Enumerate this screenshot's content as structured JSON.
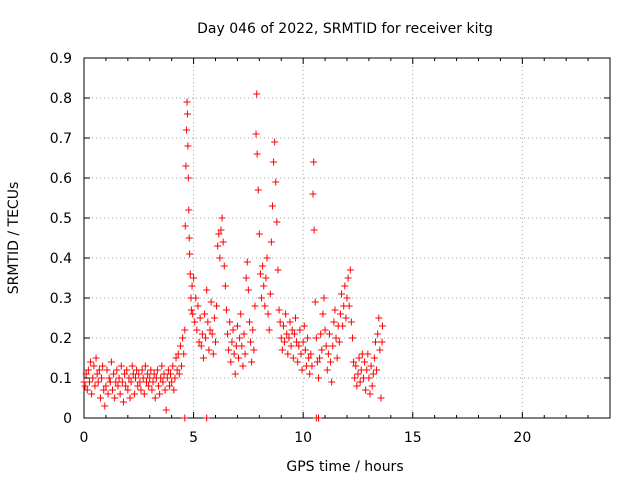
{
  "chart_data": {
    "type": "scatter",
    "title": "Day 046 of 2022, SRMTID for receiver kitg",
    "xlabel": "GPS time / hours",
    "ylabel": "SRMTID / TECUs",
    "xlim": [
      0,
      24
    ],
    "ylim": [
      0,
      0.9
    ],
    "xticks": [
      "0",
      "5",
      "10",
      "15",
      "20"
    ],
    "yticks": [
      "0",
      "0.1",
      "0.2",
      "0.3",
      "0.4",
      "0.5",
      "0.6",
      "0.7",
      "0.8",
      "0.9"
    ],
    "grid": true,
    "marker": "+",
    "color": "#ff0000",
    "series": [
      {
        "name": "SRMTID",
        "points": [
          [
            0.0,
            0.09
          ],
          [
            0.05,
            0.08
          ],
          [
            0.1,
            0.11
          ],
          [
            0.15,
            0.07
          ],
          [
            0.2,
            0.12
          ],
          [
            0.25,
            0.09
          ],
          [
            0.3,
            0.14
          ],
          [
            0.35,
            0.06
          ],
          [
            0.4,
            0.1
          ],
          [
            0.45,
            0.13
          ],
          [
            0.5,
            0.08
          ],
          [
            0.55,
            0.15
          ],
          [
            0.6,
            0.11
          ],
          [
            0.65,
            0.09
          ],
          [
            0.7,
            0.12
          ],
          [
            0.75,
            0.05
          ],
          [
            0.8,
            0.1
          ],
          [
            0.85,
            0.13
          ],
          [
            0.9,
            0.07
          ],
          [
            0.95,
            0.03
          ],
          [
            1.0,
            0.08
          ],
          [
            1.05,
            0.12
          ],
          [
            1.1,
            0.06
          ],
          [
            1.15,
            0.1
          ],
          [
            1.2,
            0.09
          ],
          [
            1.25,
            0.14
          ],
          [
            1.3,
            0.07
          ],
          [
            1.35,
            0.11
          ],
          [
            1.4,
            0.05
          ],
          [
            1.45,
            0.09
          ],
          [
            1.5,
            0.12
          ],
          [
            1.55,
            0.08
          ],
          [
            1.6,
            0.1
          ],
          [
            1.65,
            0.06
          ],
          [
            1.7,
            0.13
          ],
          [
            1.75,
            0.09
          ],
          [
            1.8,
            0.04
          ],
          [
            1.85,
            0.11
          ],
          [
            1.9,
            0.08
          ],
          [
            1.95,
            0.12
          ],
          [
            2.0,
            0.07
          ],
          [
            2.05,
            0.1
          ],
          [
            2.1,
            0.05
          ],
          [
            2.15,
            0.09
          ],
          [
            2.2,
            0.13
          ],
          [
            2.25,
            0.11
          ],
          [
            2.3,
            0.06
          ],
          [
            2.35,
            0.1
          ],
          [
            2.4,
            0.12
          ],
          [
            2.45,
            0.08
          ],
          [
            2.5,
            0.11
          ],
          [
            2.55,
            0.09
          ],
          [
            2.6,
            0.07
          ],
          [
            2.65,
            0.12
          ],
          [
            2.7,
            0.1
          ],
          [
            2.75,
            0.06
          ],
          [
            2.8,
            0.13
          ],
          [
            2.85,
            0.09
          ],
          [
            2.9,
            0.11
          ],
          [
            2.95,
            0.08
          ],
          [
            3.0,
            0.1
          ],
          [
            3.05,
            0.12
          ],
          [
            3.1,
            0.07
          ],
          [
            3.15,
            0.09
          ],
          [
            3.2,
            0.11
          ],
          [
            3.25,
            0.05
          ],
          [
            3.3,
            0.1
          ],
          [
            3.35,
            0.12
          ],
          [
            3.4,
            0.08
          ],
          [
            3.45,
            0.06
          ],
          [
            3.5,
            0.1
          ],
          [
            3.55,
            0.13
          ],
          [
            3.6,
            0.09
          ],
          [
            3.65,
            0.11
          ],
          [
            3.7,
            0.07
          ],
          [
            3.75,
            0.02
          ],
          [
            3.8,
            0.1
          ],
          [
            3.85,
            0.12
          ],
          [
            3.9,
            0.08
          ],
          [
            3.95,
            0.11
          ],
          [
            4.0,
            0.09
          ],
          [
            4.05,
            0.13
          ],
          [
            4.1,
            0.07
          ],
          [
            4.15,
            0.1
          ],
          [
            4.2,
            0.15
          ],
          [
            4.25,
            0.12
          ],
          [
            4.3,
            0.16
          ],
          [
            4.35,
            0.11
          ],
          [
            4.4,
            0.18
          ],
          [
            4.45,
            0.13
          ],
          [
            4.5,
            0.2
          ],
          [
            4.55,
            0.16
          ],
          [
            4.6,
            0.22
          ],
          [
            4.62,
            0.48
          ],
          [
            4.65,
            0.63
          ],
          [
            4.68,
            0.72
          ],
          [
            4.7,
            0.79
          ],
          [
            4.72,
            0.76
          ],
          [
            4.74,
            0.68
          ],
          [
            4.76,
            0.6
          ],
          [
            4.78,
            0.52
          ],
          [
            4.8,
            0.45
          ],
          [
            4.82,
            0.41
          ],
          [
            4.85,
            0.36
          ],
          [
            4.88,
            0.3
          ],
          [
            4.9,
            0.27
          ],
          [
            4.93,
            0.33
          ],
          [
            4.96,
            0.26
          ],
          [
            5.0,
            0.35
          ],
          [
            5.05,
            0.24
          ],
          [
            5.1,
            0.3
          ],
          [
            5.15,
            0.22
          ],
          [
            5.2,
            0.28
          ],
          [
            5.25,
            0.19
          ],
          [
            5.3,
            0.25
          ],
          [
            5.35,
            0.18
          ],
          [
            5.4,
            0.21
          ],
          [
            5.45,
            0.15
          ],
          [
            5.5,
            0.26
          ],
          [
            5.55,
            0.2
          ],
          [
            5.6,
            0.32
          ],
          [
            5.65,
            0.24
          ],
          [
            5.7,
            0.17
          ],
          [
            5.75,
            0.22
          ],
          [
            5.8,
            0.29
          ],
          [
            5.85,
            0.21
          ],
          [
            5.9,
            0.16
          ],
          [
            5.95,
            0.25
          ],
          [
            6.0,
            0.19
          ],
          [
            6.05,
            0.28
          ],
          [
            6.1,
            0.43
          ],
          [
            6.15,
            0.46
          ],
          [
            6.2,
            0.4
          ],
          [
            6.25,
            0.47
          ],
          [
            6.3,
            0.5
          ],
          [
            6.35,
            0.44
          ],
          [
            6.4,
            0.38
          ],
          [
            6.45,
            0.33
          ],
          [
            6.5,
            0.27
          ],
          [
            6.55,
            0.21
          ],
          [
            6.6,
            0.17
          ],
          [
            6.65,
            0.24
          ],
          [
            6.7,
            0.14
          ],
          [
            6.75,
            0.19
          ],
          [
            6.8,
            0.22
          ],
          [
            6.85,
            0.16
          ],
          [
            6.9,
            0.11
          ],
          [
            6.95,
            0.18
          ],
          [
            7.0,
            0.23
          ],
          [
            7.05,
            0.15
          ],
          [
            7.1,
            0.2
          ],
          [
            7.15,
            0.26
          ],
          [
            7.2,
            0.18
          ],
          [
            7.25,
            0.13
          ],
          [
            7.3,
            0.21
          ],
          [
            7.35,
            0.16
          ],
          [
            7.4,
            0.35
          ],
          [
            7.45,
            0.39
          ],
          [
            7.5,
            0.32
          ],
          [
            7.55,
            0.24
          ],
          [
            7.6,
            0.19
          ],
          [
            7.65,
            0.14
          ],
          [
            7.7,
            0.22
          ],
          [
            7.75,
            0.17
          ],
          [
            7.8,
            0.28
          ],
          [
            7.85,
            0.71
          ],
          [
            7.88,
            0.81
          ],
          [
            7.9,
            0.66
          ],
          [
            7.95,
            0.57
          ],
          [
            8.0,
            0.46
          ],
          [
            8.05,
            0.36
          ],
          [
            8.1,
            0.3
          ],
          [
            8.15,
            0.38
          ],
          [
            8.2,
            0.33
          ],
          [
            8.25,
            0.28
          ],
          [
            8.3,
            0.35
          ],
          [
            8.35,
            0.4
          ],
          [
            8.4,
            0.26
          ],
          [
            8.45,
            0.22
          ],
          [
            8.5,
            0.31
          ],
          [
            8.55,
            0.44
          ],
          [
            8.6,
            0.53
          ],
          [
            8.65,
            0.64
          ],
          [
            8.7,
            0.69
          ],
          [
            8.75,
            0.59
          ],
          [
            8.8,
            0.49
          ],
          [
            8.85,
            0.37
          ],
          [
            8.9,
            0.27
          ],
          [
            8.95,
            0.24
          ],
          [
            9.0,
            0.2
          ],
          [
            9.05,
            0.17
          ],
          [
            9.1,
            0.23
          ],
          [
            9.15,
            0.19
          ],
          [
            9.2,
            0.26
          ],
          [
            9.25,
            0.21
          ],
          [
            9.3,
            0.16
          ],
          [
            9.35,
            0.2
          ],
          [
            9.4,
            0.24
          ],
          [
            9.45,
            0.18
          ],
          [
            9.5,
            0.22
          ],
          [
            9.55,
            0.15
          ],
          [
            9.6,
            0.21
          ],
          [
            9.65,
            0.25
          ],
          [
            9.7,
            0.19
          ],
          [
            9.75,
            0.14
          ],
          [
            9.8,
            0.18
          ],
          [
            9.85,
            0.22
          ],
          [
            9.9,
            0.16
          ],
          [
            9.95,
            0.12
          ],
          [
            10.0,
            0.19
          ],
          [
            10.05,
            0.23
          ],
          [
            10.1,
            0.17
          ],
          [
            10.15,
            0.13
          ],
          [
            10.2,
            0.2
          ],
          [
            10.25,
            0.15
          ],
          [
            10.3,
            0.11
          ],
          [
            10.35,
            0.16
          ],
          [
            10.4,
            0.13
          ],
          [
            10.45,
            0.56
          ],
          [
            10.48,
            0.64
          ],
          [
            10.5,
            0.47
          ],
          [
            10.55,
            0.29
          ],
          [
            10.6,
            0.2
          ],
          [
            10.65,
            0.14
          ],
          [
            10.7,
            0.1
          ],
          [
            10.75,
            0.15
          ],
          [
            10.8,
            0.21
          ],
          [
            10.85,
            0.17
          ],
          [
            10.9,
            0.26
          ],
          [
            10.95,
            0.3
          ],
          [
            11.0,
            0.22
          ],
          [
            11.05,
            0.18
          ],
          [
            11.1,
            0.12
          ],
          [
            11.15,
            0.16
          ],
          [
            11.2,
            0.21
          ],
          [
            11.25,
            0.14
          ],
          [
            11.3,
            0.09
          ],
          [
            11.35,
            0.18
          ],
          [
            11.4,
            0.24
          ],
          [
            11.45,
            0.27
          ],
          [
            11.5,
            0.2
          ],
          [
            11.55,
            0.15
          ],
          [
            11.6,
            0.23
          ],
          [
            11.65,
            0.19
          ],
          [
            11.7,
            0.26
          ],
          [
            11.75,
            0.31
          ],
          [
            11.8,
            0.23
          ],
          [
            11.85,
            0.28
          ],
          [
            11.9,
            0.33
          ],
          [
            11.95,
            0.25
          ],
          [
            12.0,
            0.3
          ],
          [
            12.05,
            0.35
          ],
          [
            12.1,
            0.28
          ],
          [
            12.15,
            0.37
          ],
          [
            12.2,
            0.24
          ],
          [
            12.25,
            0.2
          ],
          [
            12.3,
            0.14
          ],
          [
            12.35,
            0.1
          ],
          [
            12.4,
            0.13
          ],
          [
            12.45,
            0.08
          ],
          [
            12.5,
            0.11
          ],
          [
            12.55,
            0.15
          ],
          [
            12.6,
            0.09
          ],
          [
            12.65,
            0.12
          ],
          [
            12.7,
            0.16
          ],
          [
            12.75,
            0.1
          ],
          [
            12.8,
            0.14
          ],
          [
            12.85,
            0.07
          ],
          [
            12.9,
            0.12
          ],
          [
            12.95,
            0.16
          ],
          [
            13.0,
            0.1
          ],
          [
            13.05,
            0.06
          ],
          [
            13.1,
            0.13
          ],
          [
            13.15,
            0.08
          ],
          [
            13.2,
            0.11
          ],
          [
            13.25,
            0.15
          ],
          [
            13.3,
            0.19
          ],
          [
            13.35,
            0.12
          ],
          [
            13.4,
            0.21
          ],
          [
            13.45,
            0.25
          ],
          [
            13.5,
            0.17
          ],
          [
            13.55,
            0.05
          ],
          [
            13.6,
            0.19
          ],
          [
            13.62,
            0.23
          ],
          [
            4.6,
            0.0
          ],
          [
            5.6,
            0.0
          ],
          [
            10.6,
            0.0
          ],
          [
            10.7,
            0.0
          ]
        ]
      }
    ]
  }
}
